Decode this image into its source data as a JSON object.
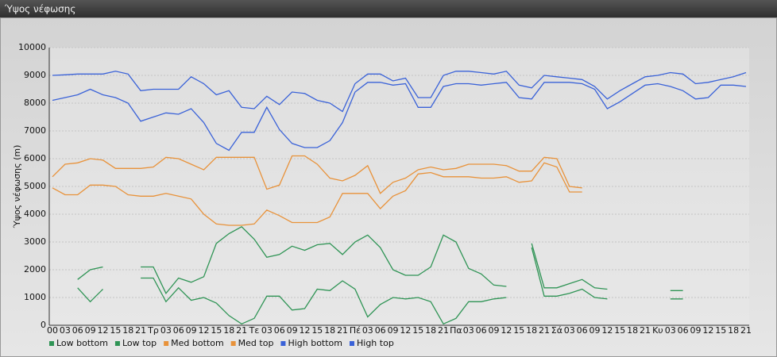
{
  "chart_data": {
    "type": "line",
    "title": "Ύψος νέφωσης",
    "ylabel": "Ύψος νέφωσης (m)",
    "categories": [
      "00",
      "03",
      "06",
      "09",
      "12",
      "15",
      "18",
      "21",
      "Τρ",
      "03",
      "06",
      "09",
      "12",
      "15",
      "18",
      "21",
      "Τε",
      "03",
      "06",
      "09",
      "12",
      "15",
      "18",
      "21",
      "Πέ",
      "03",
      "06",
      "09",
      "12",
      "15",
      "18",
      "21",
      "Πα",
      "03",
      "06",
      "09",
      "12",
      "15",
      "18",
      "21",
      "Σά",
      "03",
      "06",
      "09",
      "12",
      "15",
      "18",
      "21",
      "Κυ",
      "03",
      "06",
      "09",
      "12",
      "15",
      "18",
      "21"
    ],
    "ylim": [
      0,
      10000
    ],
    "yticks": [
      0,
      1000,
      2000,
      3000,
      4000,
      5000,
      6000,
      7000,
      8000,
      9000,
      10000
    ],
    "grid": true,
    "legend": "bottom-left",
    "series": [
      {
        "name": "Low bottom",
        "color": "#2f9455",
        "values": [
          null,
          null,
          1350,
          850,
          1300,
          null,
          null,
          1700,
          1700,
          850,
          1350,
          900,
          1000,
          800,
          350,
          50,
          250,
          1050,
          1050,
          550,
          600,
          1300,
          1250,
          1600,
          1300,
          300,
          750,
          1000,
          950,
          1000,
          850,
          50,
          250,
          850,
          850,
          950,
          1000,
          null,
          2800,
          1050,
          1050,
          1150,
          1300,
          1000,
          950,
          null,
          null,
          null,
          null,
          950,
          950,
          null,
          null,
          null,
          null,
          null
        ]
      },
      {
        "name": "Low top",
        "color": "#2f9455",
        "values": [
          null,
          null,
          1650,
          2000,
          2100,
          null,
          null,
          2100,
          2100,
          1150,
          1700,
          1550,
          1750,
          2950,
          3300,
          3550,
          3100,
          2450,
          2550,
          2850,
          2700,
          2900,
          2950,
          2550,
          3000,
          3250,
          2800,
          2000,
          1800,
          1800,
          2100,
          3250,
          3000,
          2050,
          1850,
          1450,
          1400,
          null,
          2950,
          1350,
          1350,
          1500,
          1650,
          1350,
          1300,
          null,
          null,
          null,
          null,
          1250,
          1250,
          null,
          null,
          null,
          null,
          null
        ]
      },
      {
        "name": "Med bottom",
        "color": "#e8923a",
        "values": [
          4950,
          4700,
          4700,
          5050,
          5050,
          5000,
          4700,
          4650,
          4650,
          4750,
          4650,
          4550,
          4000,
          3650,
          3600,
          3600,
          3650,
          4150,
          3950,
          3700,
          3700,
          3700,
          3900,
          4750,
          4750,
          4750,
          4200,
          4650,
          4850,
          5450,
          5500,
          5350,
          5350,
          5350,
          5300,
          5300,
          5350,
          5150,
          5200,
          5850,
          5700,
          4800,
          4800,
          null,
          null,
          null,
          null,
          null,
          null,
          null,
          null,
          null,
          null,
          null,
          null,
          null
        ]
      },
      {
        "name": "Med top",
        "color": "#e8923a",
        "values": [
          5350,
          5800,
          5850,
          6000,
          5950,
          5650,
          5650,
          5650,
          5700,
          6050,
          6000,
          5800,
          5600,
          6050,
          6050,
          6050,
          6050,
          4900,
          5050,
          6100,
          6100,
          5800,
          5300,
          5200,
          5400,
          5750,
          4750,
          5150,
          5300,
          5600,
          5700,
          5600,
          5650,
          5800,
          5800,
          5800,
          5750,
          5550,
          5550,
          6050,
          6000,
          5000,
          4950,
          null,
          null,
          null,
          null,
          null,
          null,
          null,
          null,
          null,
          null,
          null,
          null,
          null
        ]
      },
      {
        "name": "High bottom",
        "color": "#3a62d8",
        "values": [
          8100,
          8200,
          8300,
          8500,
          8300,
          8200,
          8000,
          7350,
          7500,
          7650,
          7600,
          7800,
          7300,
          6550,
          6300,
          6950,
          6950,
          7850,
          7050,
          6550,
          6400,
          6400,
          6650,
          7300,
          8400,
          8750,
          8750,
          8650,
          8700,
          7850,
          7850,
          8600,
          8700,
          8700,
          8650,
          8700,
          8750,
          8200,
          8150,
          8750,
          8750,
          8750,
          8700,
          8500,
          7800,
          8050,
          8350,
          8650,
          8700,
          8600,
          8450,
          8150,
          8200,
          8650,
          8650,
          8600
        ]
      },
      {
        "name": "High top",
        "color": "#3a62d8",
        "values": [
          9000,
          9020,
          9050,
          9050,
          9050,
          9150,
          9050,
          8450,
          8500,
          8500,
          8500,
          8950,
          8700,
          8300,
          8450,
          7850,
          7800,
          8250,
          7950,
          8400,
          8350,
          8100,
          8000,
          7700,
          8700,
          9050,
          9050,
          8800,
          8900,
          8200,
          8200,
          9000,
          9150,
          9150,
          9100,
          9050,
          9150,
          8650,
          8550,
          9000,
          8950,
          8900,
          8850,
          8600,
          8150,
          8450,
          8700,
          8950,
          9000,
          9100,
          9050,
          8700,
          8750,
          8850,
          8950,
          9100
        ]
      }
    ]
  }
}
